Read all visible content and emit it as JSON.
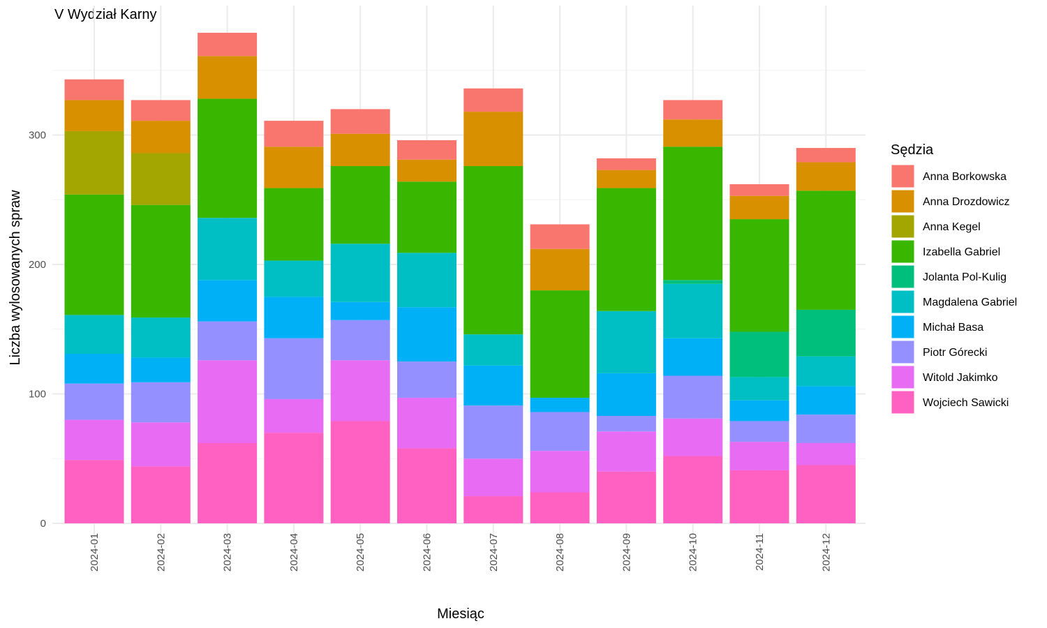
{
  "chart_data": {
    "type": "bar",
    "stacked": true,
    "title": "V Wydział Karny",
    "xlabel": "Miesiąc",
    "ylabel": "Liczba wylosowanych spraw",
    "ylim": [
      0,
      380
    ],
    "yticks": [
      0,
      100,
      200,
      300
    ],
    "grid": true,
    "legend_title": "Sędzia",
    "legend_position": "right",
    "categories": [
      "2024-01",
      "2024-02",
      "2024-03",
      "2024-04",
      "2024-05",
      "2024-06",
      "2024-07",
      "2024-08",
      "2024-09",
      "2024-10",
      "2024-11",
      "2024-12"
    ],
    "series": [
      {
        "name": "Wojciech Sawicki",
        "color": "#FF61C3",
        "values": [
          49,
          44,
          62,
          70,
          79,
          58,
          21,
          24,
          40,
          52,
          41,
          45
        ]
      },
      {
        "name": "Witold Jakimko",
        "color": "#E76BF3",
        "values": [
          31,
          34,
          64,
          26,
          47,
          39,
          29,
          32,
          31,
          29,
          22,
          17
        ]
      },
      {
        "name": "Piotr Górecki",
        "color": "#9590FF",
        "values": [
          28,
          31,
          30,
          47,
          31,
          28,
          41,
          30,
          12,
          33,
          16,
          22
        ]
      },
      {
        "name": "Michał Basa",
        "color": "#00B0F6",
        "values": [
          23,
          19,
          32,
          32,
          14,
          42,
          31,
          11,
          33,
          29,
          16,
          22
        ]
      },
      {
        "name": "Magdalena Gabriel",
        "color": "#00BFC4",
        "values": [
          30,
          31,
          48,
          28,
          45,
          42,
          24,
          0,
          48,
          42,
          18,
          23
        ]
      },
      {
        "name": "Jolanta Pol-Kulig",
        "color": "#00BF7D",
        "values": [
          0,
          0,
          0,
          0,
          0,
          0,
          0,
          0,
          0,
          3,
          35,
          36
        ]
      },
      {
        "name": "Izabella Gabriel",
        "color": "#39B600",
        "values": [
          93,
          87,
          92,
          56,
          60,
          55,
          130,
          83,
          95,
          103,
          87,
          92
        ]
      },
      {
        "name": "Anna Kegel",
        "color": "#A3A500",
        "values": [
          49,
          40,
          0,
          0,
          0,
          0,
          0,
          0,
          0,
          0,
          0,
          0
        ]
      },
      {
        "name": "Anna Drozdowicz",
        "color": "#D89000",
        "values": [
          24,
          25,
          33,
          32,
          25,
          17,
          42,
          32,
          14,
          21,
          18,
          22
        ]
      },
      {
        "name": "Anna Borkowska",
        "color": "#F8766D",
        "values": [
          16,
          16,
          18,
          20,
          19,
          15,
          18,
          19,
          9,
          15,
          9,
          11
        ]
      }
    ],
    "legend_order": [
      "Anna Borkowska",
      "Anna Drozdowicz",
      "Anna Kegel",
      "Izabella Gabriel",
      "Jolanta Pol-Kulig",
      "Magdalena Gabriel",
      "Michał Basa",
      "Piotr Górecki",
      "Witold Jakimko",
      "Wojciech Sawicki"
    ]
  }
}
